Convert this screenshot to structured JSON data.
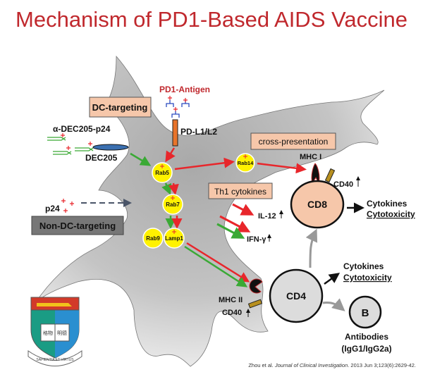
{
  "title": "Mechanism of PD1-Based AIDS Vaccine",
  "labels": {
    "pd1_antigen": "PD1-Antigen",
    "pdl1": "PD-L1/L2",
    "dc_targeting": "DC-targeting",
    "adec": "α-DEC205-p24",
    "dec205": "DEC205",
    "p24": "p24",
    "non_dc": "Non-DC-targeting",
    "rab5": "Rab5",
    "rab7": "Rab7",
    "rab9": "Rab9",
    "lamp1": "Lamp1",
    "rab14": "Rab14",
    "cross": "cross-presentation",
    "mhc1": "MHC I",
    "cd40_top": "CD40",
    "cd8": "CD8",
    "th1": "Th1 cytokines",
    "il12": "IL-12",
    "ifng": "IFN-γ",
    "cd8_out1": "Cytokines",
    "cd8_out2": "Cytotoxicity",
    "cd4": "CD4",
    "mhc2": "MHC II",
    "cd40_bottom": "CD40",
    "cd4_out1": "Cytokines",
    "cd4_out2": "Cytotoxicity",
    "b": "B",
    "antibodies": "Antibodies",
    "igg": "(IgG1/IgG2a)"
  },
  "citation": {
    "authors": "Zhou et al. ",
    "journal": "Journal of Clinical Investigation",
    "rest": ". 2013 Jun 3;123(6):2629-42."
  },
  "logo": {
    "motto": "SAPIENTIA ET VIRTUS",
    "chars": "格物明德"
  },
  "colors": {
    "title": "#c0282d",
    "box": "#f6c7aa",
    "red": "#e8262b",
    "green": "#3aa935",
    "rab": "#fff200",
    "cd8": "#f6c7aa",
    "cd4": "#dcdcdc"
  }
}
